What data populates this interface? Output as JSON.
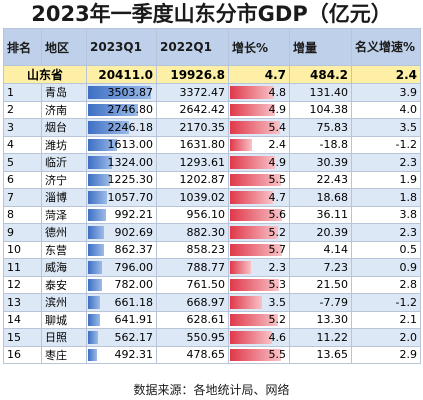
{
  "title": "2023年一季度山东分市GDP（亿元）",
  "headers": [
    "排名",
    "地区",
    "2023Q1",
    "2022Q1",
    "增长%",
    "增量",
    "名义增速%"
  ],
  "province": {
    "name": "山东省",
    "q1_2023": "20411.0",
    "q1_2022": "19926.8",
    "growth": "4.7",
    "increase": "484.2",
    "nominal": "2.4"
  },
  "rows": [
    {
      "rank": "1",
      "region": "青岛",
      "q1_2023": "3503.87",
      "q1_2022": "3372.47",
      "growth": "4.8",
      "increase": "131.40",
      "nominal": "3.9",
      "gdp_value": 3503.87,
      "growth_value": 4.8
    },
    {
      "rank": "2",
      "region": "济南",
      "q1_2023": "2746.80",
      "q1_2022": "2642.42",
      "growth": "4.9",
      "increase": "104.38",
      "nominal": "4.0",
      "gdp_value": 2746.8,
      "growth_value": 4.9
    },
    {
      "rank": "3",
      "region": "烟台",
      "q1_2023": "2246.18",
      "q1_2022": "2170.35",
      "growth": "5.4",
      "increase": "75.83",
      "nominal": "3.5",
      "gdp_value": 2246.18,
      "growth_value": 5.4
    },
    {
      "rank": "4",
      "region": "潍坊",
      "q1_2023": "1613.00",
      "q1_2022": "1631.80",
      "growth": "2.4",
      "increase": "-18.8",
      "nominal": "-1.2",
      "gdp_value": 1613.0,
      "growth_value": 2.4
    },
    {
      "rank": "5",
      "region": "临沂",
      "q1_2023": "1324.00",
      "q1_2022": "1293.61",
      "growth": "4.9",
      "increase": "30.39",
      "nominal": "2.3",
      "gdp_value": 1324.0,
      "growth_value": 4.9
    },
    {
      "rank": "6",
      "region": "济宁",
      "q1_2023": "1225.30",
      "q1_2022": "1202.87",
      "growth": "5.5",
      "increase": "22.43",
      "nominal": "1.9",
      "gdp_value": 1225.3,
      "growth_value": 5.5
    },
    {
      "rank": "7",
      "region": "淄博",
      "q1_2023": "1057.70",
      "q1_2022": "1039.02",
      "growth": "4.7",
      "increase": "18.68",
      "nominal": "1.8",
      "gdp_value": 1057.7,
      "growth_value": 4.7
    },
    {
      "rank": "8",
      "region": "菏泽",
      "q1_2023": "992.21",
      "q1_2022": "956.10",
      "growth": "5.6",
      "increase": "36.11",
      "nominal": "3.8",
      "gdp_value": 992.21,
      "growth_value": 5.6
    },
    {
      "rank": "9",
      "region": "德州",
      "q1_2023": "902.69",
      "q1_2022": "882.30",
      "growth": "5.2",
      "increase": "20.39",
      "nominal": "2.3",
      "gdp_value": 902.69,
      "growth_value": 5.2
    },
    {
      "rank": "10",
      "region": "东营",
      "q1_2023": "862.37",
      "q1_2022": "858.23",
      "growth": "5.7",
      "increase": "4.14",
      "nominal": "0.5",
      "gdp_value": 862.37,
      "growth_value": 5.7
    },
    {
      "rank": "11",
      "region": "威海",
      "q1_2023": "796.00",
      "q1_2022": "788.77",
      "growth": "2.3",
      "increase": "7.23",
      "nominal": "0.9",
      "gdp_value": 796.0,
      "growth_value": 2.3
    },
    {
      "rank": "12",
      "region": "泰安",
      "q1_2023": "782.00",
      "q1_2022": "761.50",
      "growth": "5.3",
      "increase": "21.50",
      "nominal": "2.8",
      "gdp_value": 782.0,
      "growth_value": 5.3
    },
    {
      "rank": "13",
      "region": "滨州",
      "q1_2023": "661.18",
      "q1_2022": "668.97",
      "growth": "3.5",
      "increase": "-7.79",
      "nominal": "-1.2",
      "gdp_value": 661.18,
      "growth_value": 3.5
    },
    {
      "rank": "14",
      "region": "聊城",
      "q1_2023": "641.91",
      "q1_2022": "628.61",
      "growth": "5.2",
      "increase": "13.30",
      "nominal": "2.1",
      "gdp_value": 641.91,
      "growth_value": 5.2
    },
    {
      "rank": "15",
      "region": "日照",
      "q1_2023": "562.17",
      "q1_2022": "550.95",
      "growth": "4.6",
      "increase": "11.22",
      "nominal": "2.0",
      "gdp_value": 562.17,
      "growth_value": 4.6
    },
    {
      "rank": "16",
      "region": "枣庄",
      "q1_2023": "492.31",
      "q1_2022": "478.65",
      "growth": "5.5",
      "increase": "13.65",
      "nominal": "2.9",
      "gdp_value": 492.31,
      "growth_value": 5.5
    }
  ],
  "source": "数据来源：各地统计局、网络",
  "colors": {
    "header_bg": "#bfd0ea",
    "province_bg": "#fdf0a6",
    "gdp_bar": "#3d6fc4",
    "growth_bar": "#e0384a",
    "stripe": "#dde8f6"
  }
}
